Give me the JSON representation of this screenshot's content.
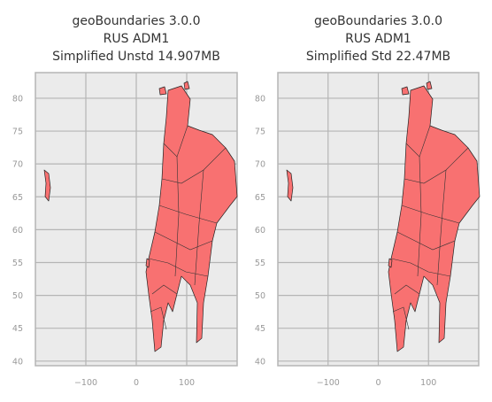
{
  "chart_data": [
    {
      "type": "map",
      "title_lines": [
        "geoBoundaries 3.0.0",
        "RUS ADM1",
        "Simplified Unstd 14.907MB"
      ],
      "xlim": [
        -200,
        200
      ],
      "ylim": [
        39.3,
        83.9
      ],
      "xticks": [
        {
          "value": -100,
          "label": "−100"
        },
        0,
        100
      ],
      "yticks": [
        40,
        45,
        50,
        55,
        60,
        65,
        70,
        75,
        80
      ],
      "grid": true,
      "color": "#f87171"
    },
    {
      "type": "map",
      "title_lines": [
        "geoBoundaries 3.0.0",
        "RUS ADM1",
        "Simplified Std 22.47MB"
      ],
      "xlim": [
        -200,
        200
      ],
      "ylim": [
        39.3,
        83.9
      ],
      "xticks": [
        {
          "value": -100,
          "label": "−100"
        },
        0,
        100
      ],
      "yticks": [
        40,
        45,
        50,
        55,
        60,
        65,
        70,
        75,
        80
      ],
      "grid": true,
      "color": "#f87171"
    }
  ]
}
